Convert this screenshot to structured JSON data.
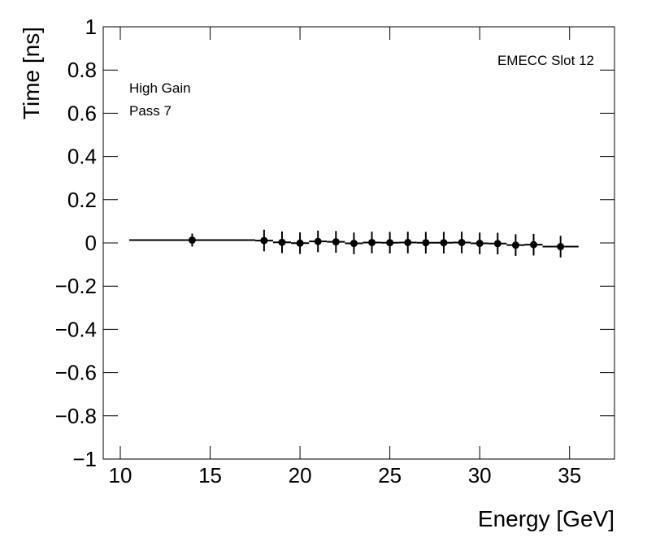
{
  "chart_data": {
    "type": "scatter",
    "x_label": "Energy [GeV]",
    "y_label": "Time [ns]",
    "annotations": [
      "EMECC Slot 12",
      "High Gain",
      "Pass 7"
    ],
    "x": [
      14,
      18,
      19,
      20,
      21,
      22,
      23,
      24,
      25,
      26,
      27,
      28,
      29,
      30,
      31,
      32,
      33,
      34.5
    ],
    "xerr": [
      3.5,
      0.5,
      0.5,
      0.5,
      0.5,
      0.5,
      0.5,
      0.5,
      0.5,
      0.5,
      0.5,
      0.5,
      0.5,
      0.5,
      0.5,
      0.5,
      0.5,
      1
    ],
    "values": [
      0.013,
      0.011,
      0.003,
      -0.001,
      0.007,
      0.005,
      -0.002,
      0.002,
      0.001,
      0.002,
      0.001,
      0.001,
      0.002,
      -0.002,
      -0.003,
      -0.01,
      -0.008,
      -0.017
    ],
    "yerr": [
      0.03,
      0.05,
      0.05,
      0.05,
      0.05,
      0.05,
      0.05,
      0.05,
      0.05,
      0.05,
      0.05,
      0.05,
      0.05,
      0.05,
      0.05,
      0.05,
      0.05,
      0.05
    ],
    "color": "#000000",
    "xlim": [
      9.05,
      37.5
    ],
    "xticks": [
      10,
      15,
      20,
      25,
      30,
      35
    ],
    "ylim": [
      -1,
      1
    ],
    "yticks": [
      {
        "value": -1,
        "label": "−1"
      },
      {
        "value": -0.8,
        "label": "−0.8"
      },
      {
        "value": -0.6,
        "label": "−0.6"
      },
      {
        "value": -0.4,
        "label": "−0.4"
      },
      {
        "value": -0.2,
        "label": "−0.2"
      },
      0,
      0.2,
      0.4,
      0.6,
      0.8,
      1
    ],
    "grid": false
  }
}
